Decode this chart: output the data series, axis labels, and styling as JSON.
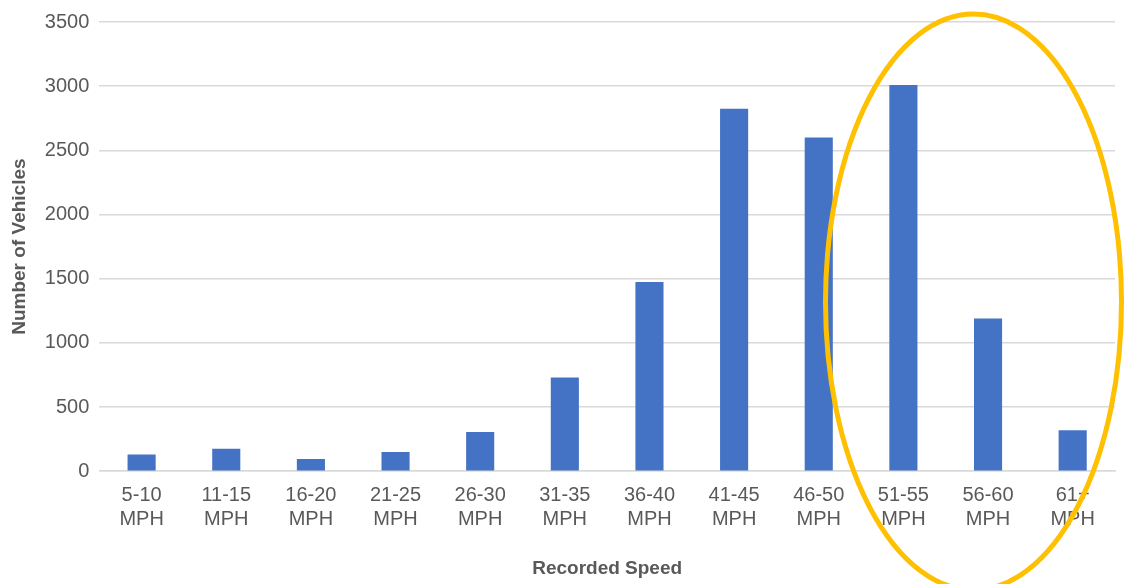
{
  "chart_data": {
    "type": "bar",
    "xlabel": "Recorded Speed",
    "ylabel": "Number of Vehicles",
    "categories": [
      "5-10 MPH",
      "11-15 MPH",
      "16-20 MPH",
      "21-25 MPH",
      "26-30 MPH",
      "31-35 MPH",
      "36-40 MPH",
      "41-45 MPH",
      "46-50 MPH",
      "51-55 MPH",
      "56-60 MPH",
      "61+ MPH"
    ],
    "values": [
      130,
      175,
      95,
      150,
      305,
      730,
      1475,
      2825,
      2600,
      3010,
      1190,
      320
    ],
    "color": "#4472c4",
    "ylim": [
      0,
      3500
    ],
    "yticks": [
      0,
      500,
      1000,
      1500,
      2000,
      2500,
      3000,
      3500
    ],
    "grid": "y"
  }
}
